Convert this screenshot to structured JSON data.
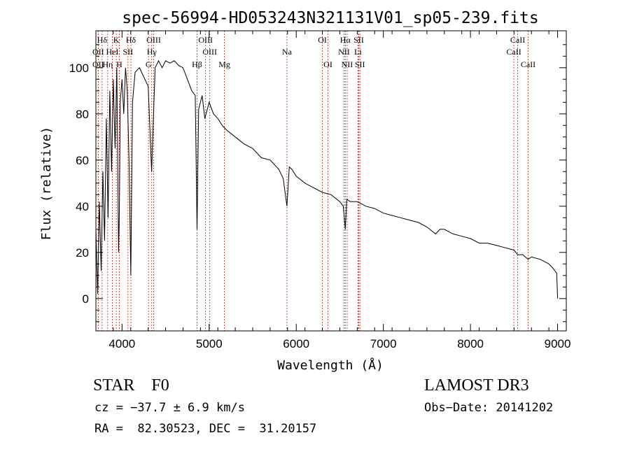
{
  "chart_data": {
    "type": "line",
    "title": "spec-56994-HD053243N321131V01_sp05-239.fits",
    "xlabel": "Wavelength (Å)",
    "ylabel": "Flux (relative)",
    "xlim": [
      3700,
      9100
    ],
    "ylim": [
      -14,
      116
    ],
    "xticks": [
      4000,
      5000,
      6000,
      7000,
      8000,
      9000
    ],
    "yticks": [
      0,
      20,
      40,
      60,
      80,
      100
    ],
    "series": [
      {
        "name": "flux",
        "x": [
          3700,
          3720,
          3740,
          3760,
          3780,
          3800,
          3820,
          3840,
          3860,
          3880,
          3900,
          3920,
          3940,
          3960,
          3970,
          3980,
          4000,
          4020,
          4040,
          4060,
          4080,
          4101,
          4120,
          4150,
          4200,
          4250,
          4300,
          4340,
          4380,
          4420,
          4460,
          4500,
          4550,
          4600,
          4650,
          4700,
          4750,
          4800,
          4840,
          4861,
          4880,
          4920,
          4950,
          5000,
          5050,
          5100,
          5150,
          5200,
          5300,
          5400,
          5500,
          5600,
          5700,
          5800,
          5850,
          5893,
          5920,
          5950,
          6000,
          6100,
          6200,
          6300,
          6400,
          6500,
          6540,
          6563,
          6580,
          6620,
          6700,
          6800,
          6900,
          7000,
          7100,
          7200,
          7300,
          7400,
          7500,
          7600,
          7650,
          7700,
          7800,
          7900,
          8000,
          8100,
          8200,
          8300,
          8400,
          8500,
          8542,
          8600,
          8662,
          8700,
          8800,
          8900,
          8950,
          8990,
          9000
        ],
        "y": [
          30,
          2,
          42,
          12,
          55,
          25,
          78,
          35,
          90,
          55,
          95,
          65,
          100,
          20,
          40,
          85,
          95,
          80,
          100,
          90,
          60,
          10,
          85,
          98,
          100,
          96,
          92,
          55,
          100,
          103,
          100,
          103,
          102,
          103,
          101,
          100,
          95,
          90,
          88,
          30,
          82,
          88,
          78,
          85,
          80,
          78,
          75,
          73,
          70,
          67,
          65,
          61,
          60,
          56,
          52,
          40,
          57,
          56,
          53,
          50,
          48,
          46,
          45,
          42,
          40,
          30,
          43,
          42,
          42,
          40,
          39,
          37,
          36,
          35,
          34,
          33,
          31,
          28,
          30,
          30,
          28,
          27,
          26,
          24,
          24,
          23,
          22,
          21,
          19,
          19,
          17,
          18,
          17,
          15,
          13,
          11,
          0
        ]
      }
    ],
    "line_markers": [
      {
        "label": "Hδ",
        "x": 3771,
        "row": 0
      },
      {
        "label": "K",
        "x": 3934,
        "row": 0
      },
      {
        "label": "Hδ",
        "x": 4102,
        "row": 0
      },
      {
        "label": "OIII",
        "x": 4363,
        "row": 0
      },
      {
        "label": "OIII",
        "x": 4959,
        "row": 0
      },
      {
        "label": "OI",
        "x": 6300,
        "row": 0
      },
      {
        "label": "Hα",
        "x": 6563,
        "row": 0
      },
      {
        "label": "SII",
        "x": 6717,
        "row": 0
      },
      {
        "label": "CaII",
        "x": 8542,
        "row": 0
      },
      {
        "label": "OII",
        "x": 3727,
        "row": 1
      },
      {
        "label": "HeI",
        "x": 3889,
        "row": 1
      },
      {
        "label": "SII",
        "x": 4068,
        "row": 1
      },
      {
        "label": "Hγ",
        "x": 4341,
        "row": 1
      },
      {
        "label": "OIII",
        "x": 5007,
        "row": 1
      },
      {
        "label": "Na",
        "x": 5893,
        "row": 1
      },
      {
        "label": "NII",
        "x": 6548,
        "row": 1
      },
      {
        "label": "Li",
        "x": 6708,
        "row": 1
      },
      {
        "label": "CaII",
        "x": 8498,
        "row": 1
      },
      {
        "label": "OII",
        "x": 3727,
        "row": 2
      },
      {
        "label": "Hη",
        "x": 3835,
        "row": 2
      },
      {
        "label": "H",
        "x": 3969,
        "row": 2
      },
      {
        "label": "G",
        "x": 4304,
        "row": 2
      },
      {
        "label": "Hβ",
        "x": 4861,
        "row": 2
      },
      {
        "label": "Mg",
        "x": 5175,
        "row": 2
      },
      {
        "label": "OI",
        "x": 6364,
        "row": 2
      },
      {
        "label": "NII",
        "x": 6584,
        "row": 2
      },
      {
        "label": "SII",
        "x": 6731,
        "row": 2
      },
      {
        "label": "CaII",
        "x": 8662,
        "row": 2
      }
    ]
  },
  "info": {
    "object_class": "STAR    F0",
    "survey": "LAMOST DR3",
    "cz": "cz = −37.7 ± 6.9 km/s",
    "obs_date": "Obs−Date: 20141202",
    "radec": "RA =  82.30523, DEC =  31.20157"
  }
}
